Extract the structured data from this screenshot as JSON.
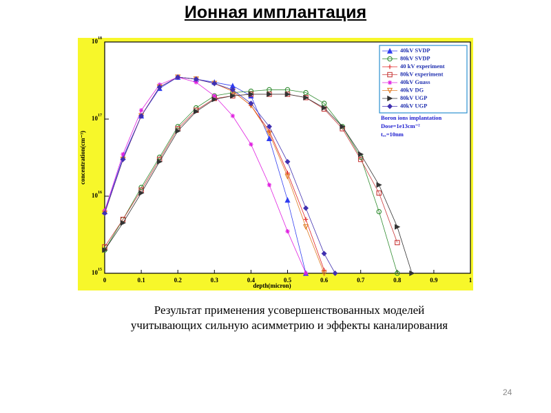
{
  "slide": {
    "title": "Ионная имплантация",
    "caption": [
      "Результат применения усовершенствованных моделей",
      "учитывающих сильную асимметрию и эффекты каналирования"
    ],
    "page_number": "24"
  },
  "chart_data": {
    "type": "scatter",
    "log_y": true,
    "legend": "upper right",
    "x_label": "depth(micron)",
    "y_label": "concentration(cm⁻³)",
    "annotation": [
      "Boron ions implantation",
      "Dose=1e13cm⁻²",
      "tₒₓ=10nm"
    ],
    "xlim": [
      0,
      1
    ],
    "xticks": [
      0,
      0.1,
      0.2,
      0.3,
      0.4,
      0.5,
      0.6,
      0.7,
      0.8,
      0.9,
      1
    ],
    "ylim": [
      1000000000000000.0,
      1e+18
    ],
    "yticks": [
      {
        "value": 1000000000000000.0,
        "label": "10",
        "exponent": "15"
      },
      {
        "value": 1e+16,
        "label": "10",
        "exponent": "16"
      },
      {
        "value": 1e+17,
        "label": "10",
        "exponent": "17"
      },
      {
        "value": 1e+18,
        "label": "10",
        "exponent": "18"
      }
    ],
    "series": [
      {
        "name": "40kV SVDP",
        "color": "#2f3cf0",
        "marker": "triangle",
        "x": [
          0,
          0.05,
          0.1,
          0.15,
          0.2,
          0.25,
          0.3,
          0.35,
          0.4,
          0.45,
          0.5,
          0.55
        ],
        "values": [
          6300000000000000.0,
          3.2e+16,
          1.1e+17,
          2.5e+17,
          3.5e+17,
          3.3e+17,
          3e+17,
          2.7e+17,
          2e+17,
          5.6e+16,
          8900000000000000.0,
          1000000000000000.0
        ]
      },
      {
        "name": "80kV SVDP",
        "color": "#2e8b2e",
        "marker": "circle",
        "x": [
          0,
          0.05,
          0.1,
          0.15,
          0.2,
          0.25,
          0.3,
          0.35,
          0.4,
          0.45,
          0.5,
          0.55,
          0.6,
          0.65,
          0.7,
          0.75,
          0.8
        ],
        "values": [
          2000000000000000.0,
          5000000000000000.0,
          1.3e+16,
          3.2e+16,
          8e+16,
          1.4e+17,
          2e+17,
          2.2e+17,
          2.3e+17,
          2.4e+17,
          2.4e+17,
          2.2e+17,
          1.6e+17,
          8e+16,
          3.2e+16,
          6300000000000000.0,
          1000000000000000.0
        ]
      },
      {
        "name": "40 kV experiment",
        "color": "#e02020",
        "marker": "plus",
        "x": [
          0,
          0.05,
          0.1,
          0.15,
          0.2,
          0.25,
          0.3,
          0.35,
          0.4,
          0.45,
          0.5,
          0.55,
          0.6
        ],
        "values": [
          6000000000000000.0,
          3e+16,
          1.1e+17,
          2.6e+17,
          3.5e+17,
          3.3e+17,
          2.9e+17,
          2.3e+17,
          1.5e+17,
          7e+16,
          2e+16,
          5000000000000000.0,
          1100000000000000.0
        ]
      },
      {
        "name": "80kV experiment",
        "color": "#c83a3a",
        "marker": "square",
        "x": [
          0,
          0.05,
          0.1,
          0.15,
          0.2,
          0.25,
          0.3,
          0.35,
          0.4,
          0.45,
          0.5,
          0.55,
          0.6,
          0.65,
          0.7,
          0.75,
          0.8
        ],
        "values": [
          2200000000000000.0,
          5000000000000000.0,
          1.2e+16,
          3e+16,
          7.5e+16,
          1.3e+17,
          1.85e+17,
          2e+17,
          2.1e+17,
          2.1e+17,
          2.1e+17,
          1.9e+17,
          1.35e+17,
          7.5e+16,
          3e+16,
          1.1e+16,
          2500000000000000.0
        ]
      },
      {
        "name": "40kV Guass",
        "color": "#e020e0",
        "marker": "star",
        "x": [
          0,
          0.05,
          0.1,
          0.15,
          0.2,
          0.25,
          0.3,
          0.35,
          0.4,
          0.45,
          0.5,
          0.55
        ],
        "values": [
          6500000000000000.0,
          3.5e+16,
          1.3e+17,
          2.8e+17,
          3.5e+17,
          3e+17,
          2e+17,
          1.1e+17,
          4.7e+16,
          1.4e+16,
          3500000000000000.0,
          1000000000000000.0
        ]
      },
      {
        "name": "40kV DG",
        "color": "#e07a20",
        "marker": "triangle-down",
        "x": [
          0,
          0.05,
          0.1,
          0.15,
          0.2,
          0.25,
          0.3,
          0.35,
          0.4,
          0.45,
          0.5,
          0.55,
          0.6
        ],
        "values": [
          6000000000000000.0,
          3e+16,
          1.1e+17,
          2.6e+17,
          3.5e+17,
          3.3e+17,
          2.9e+17,
          2.3e+17,
          1.5e+17,
          6.5e+16,
          1.8e+16,
          4000000000000000.0,
          1000000000000000.0
        ]
      },
      {
        "name": "80kV UGP",
        "color": "#333333",
        "marker": "triangle-right",
        "x": [
          0,
          0.05,
          0.1,
          0.15,
          0.2,
          0.25,
          0.3,
          0.35,
          0.4,
          0.45,
          0.5,
          0.55,
          0.6,
          0.65,
          0.7,
          0.75,
          0.8,
          0.84
        ],
        "values": [
          2000000000000000.0,
          4500000000000000.0,
          1.1e+16,
          2.8e+16,
          7e+16,
          1.25e+17,
          1.8e+17,
          2e+17,
          2.1e+17,
          2.1e+17,
          2.1e+17,
          1.9e+17,
          1.4e+17,
          8e+16,
          3.5e+16,
          1.4e+16,
          4000000000000000.0,
          1000000000000000.0
        ]
      },
      {
        "name": "40kV UGP",
        "color": "#4030b0",
        "marker": "diamond",
        "x": [
          0,
          0.05,
          0.1,
          0.15,
          0.2,
          0.25,
          0.3,
          0.35,
          0.4,
          0.45,
          0.5,
          0.55,
          0.6,
          0.63
        ],
        "values": [
          6000000000000000.0,
          3e+16,
          1.1e+17,
          2.6e+17,
          3.5e+17,
          3.3e+17,
          2.9e+17,
          2.4e+17,
          1.6e+17,
          8e+16,
          2.8e+16,
          7000000000000000.0,
          1800000000000000.0,
          1000000000000000.0
        ]
      }
    ]
  }
}
